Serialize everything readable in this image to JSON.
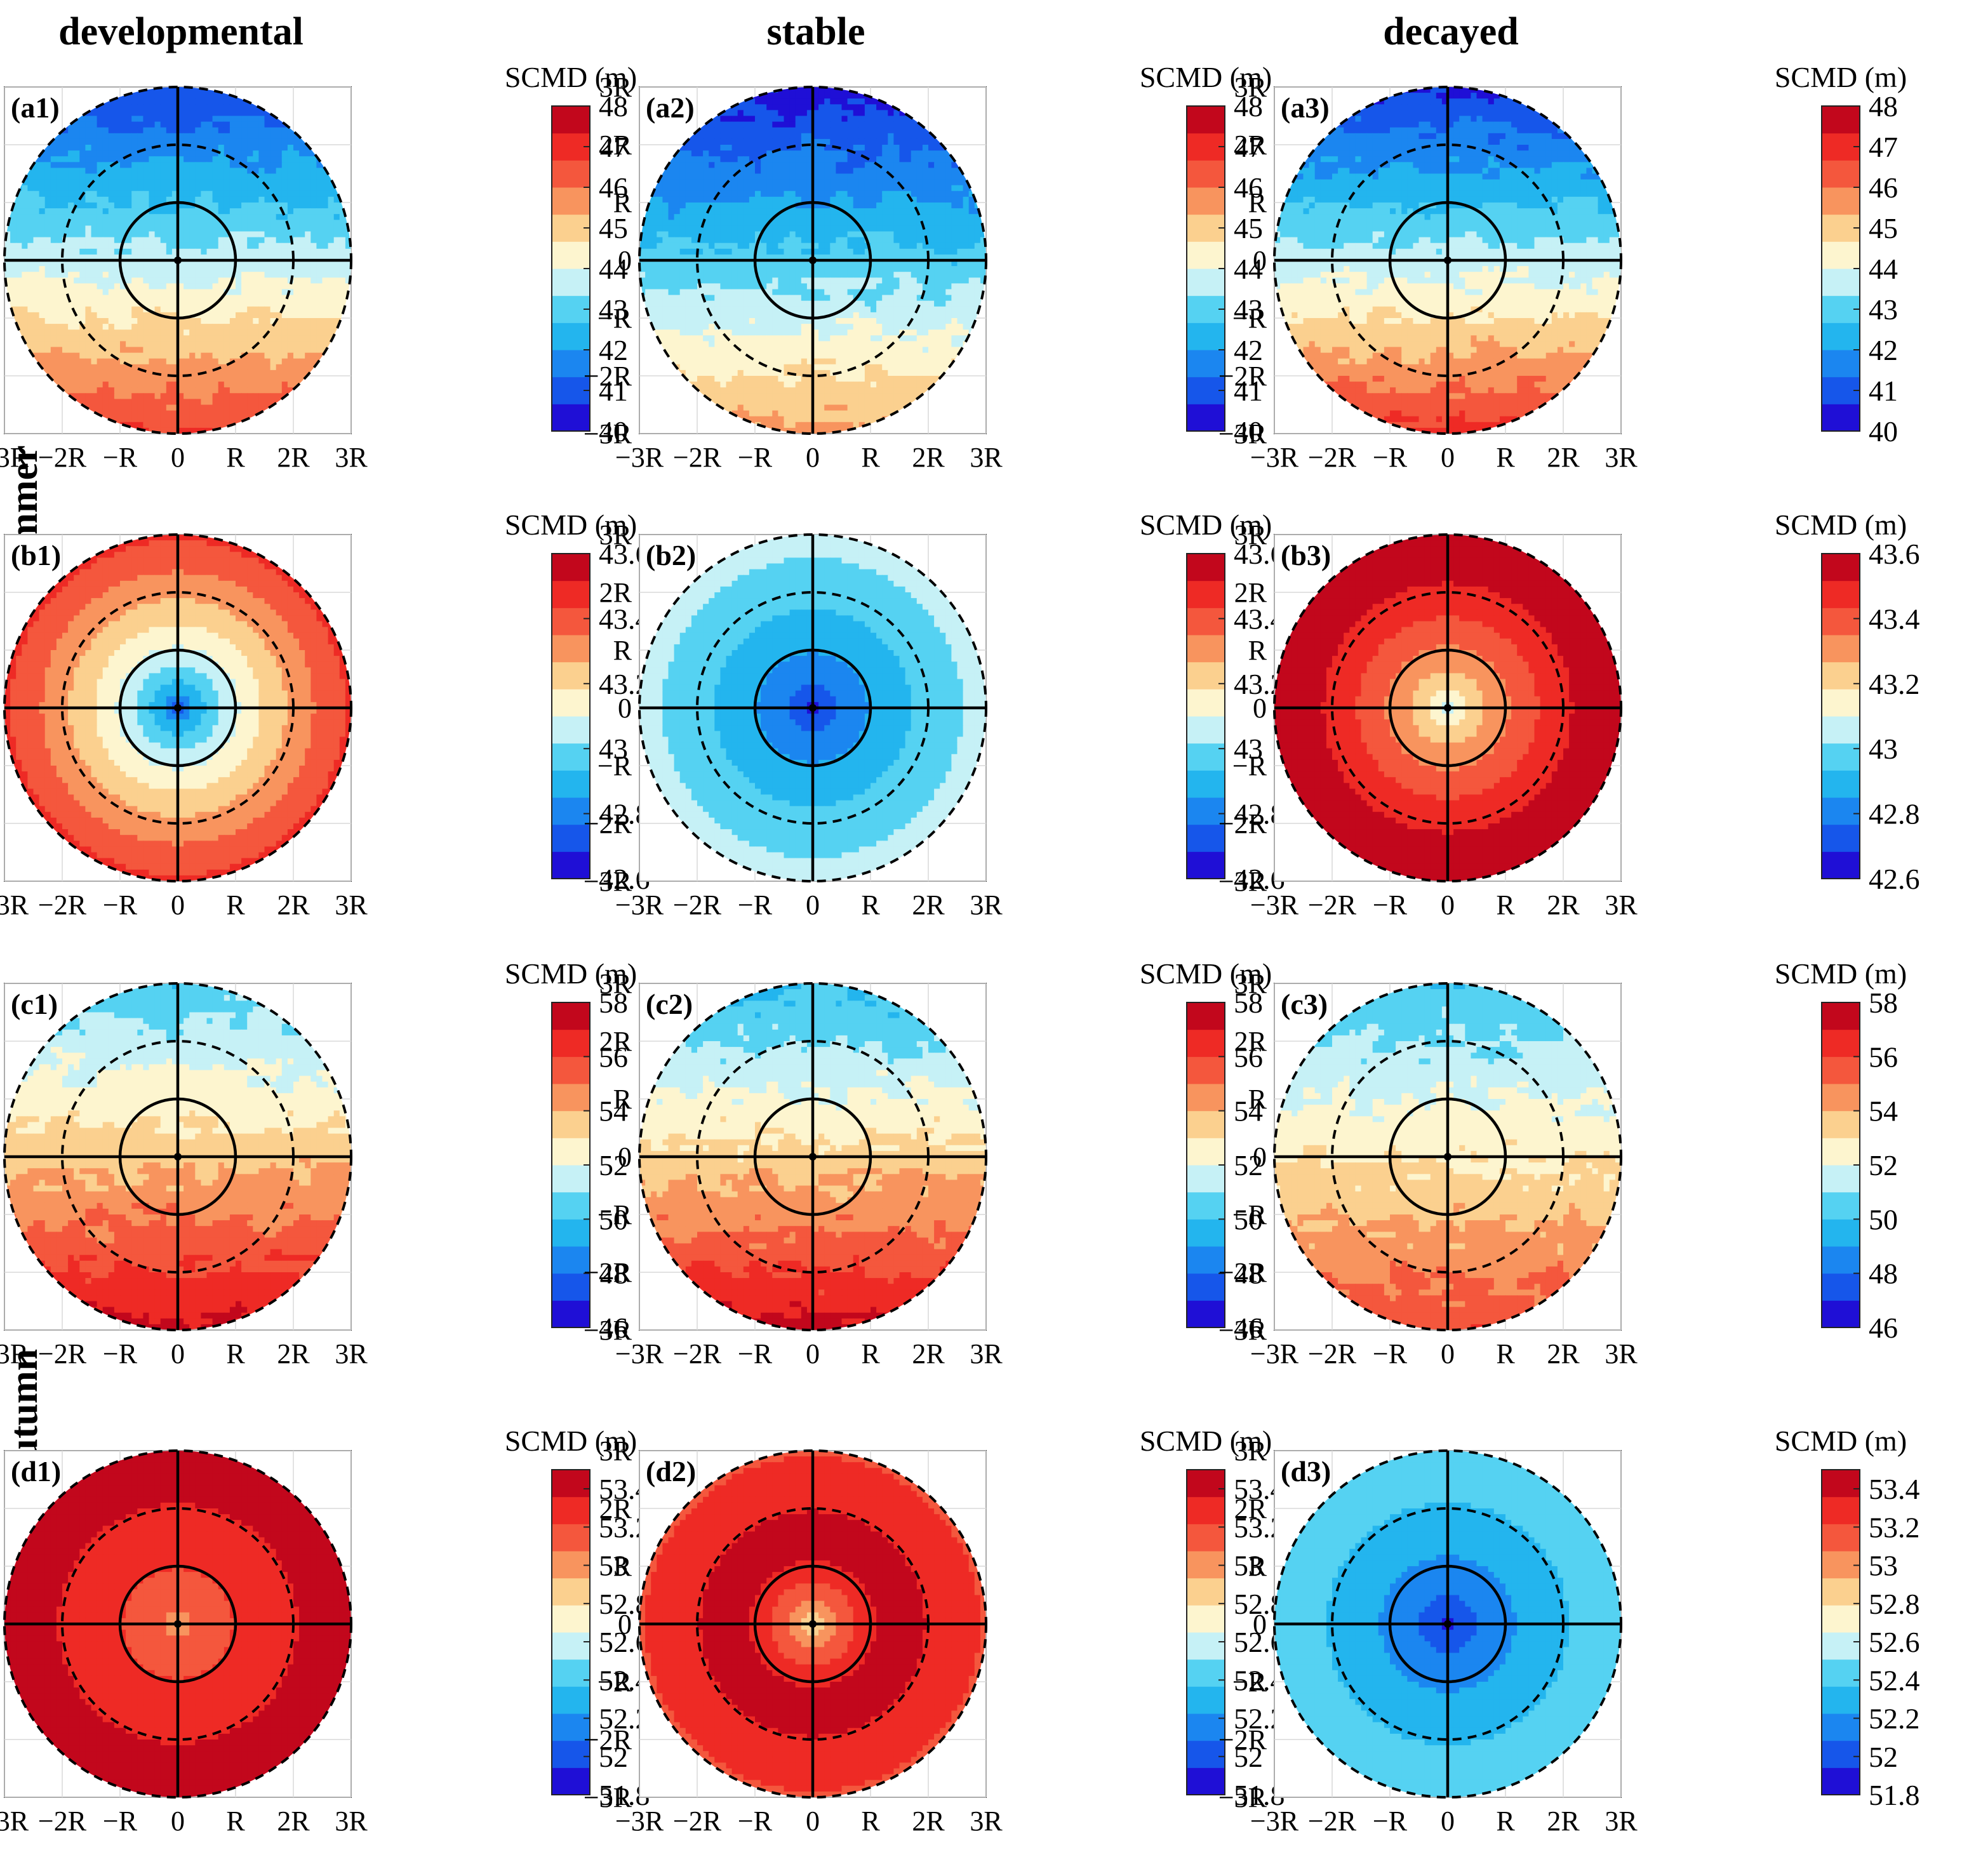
{
  "column_titles": [
    "developmental",
    "stable",
    "decayed"
  ],
  "row_titles": [
    "Summer",
    "Autumn"
  ],
  "colorbar_label": "SCMD (m)",
  "tick_labels": [
    "−3R",
    "−2R",
    "−R",
    "0",
    "R",
    "2R",
    "3R"
  ],
  "palette": [
    "#1f0fd6",
    "#1656ea",
    "#1b86f0",
    "#23b5ee",
    "#55d2f2",
    "#c6f1f6",
    "#fdf5cf",
    "#fbd08f",
    "#f8945e",
    "#f4573d",
    "#ee2a25",
    "#c2071c"
  ],
  "chart_data": [
    {
      "id": "a1",
      "label": "(a1)",
      "type": "heatmap",
      "pattern": "gradient",
      "stage": "developmental",
      "season": "Summer",
      "vmin": 40,
      "vmax": 48,
      "cb_ticks": [
        "48",
        "47",
        "46",
        "45",
        "44",
        "43",
        "42",
        "41",
        "40"
      ],
      "top_value": 40.8,
      "bottom_value": 46.7,
      "jitter": 0.3
    },
    {
      "id": "a2",
      "label": "(a2)",
      "type": "heatmap",
      "pattern": "gradient",
      "stage": "stable",
      "season": "Summer",
      "vmin": 40,
      "vmax": 48,
      "cb_ticks": [
        "48",
        "47",
        "46",
        "45",
        "44",
        "43",
        "42",
        "41",
        "40"
      ],
      "top_value": 40.4,
      "bottom_value": 45.6,
      "jitter": 0.3
    },
    {
      "id": "a3",
      "label": "(a3)",
      "type": "heatmap",
      "pattern": "gradient",
      "stage": "decayed",
      "season": "Summer",
      "vmin": 40,
      "vmax": 48,
      "cb_ticks": [
        "48",
        "47",
        "46",
        "45",
        "44",
        "43",
        "42",
        "41",
        "40"
      ],
      "top_value": 40.6,
      "bottom_value": 46.9,
      "jitter": 0.3
    },
    {
      "id": "b1",
      "label": "(b1)",
      "type": "heatmap",
      "pattern": "radial",
      "stage": "developmental",
      "season": "Summer",
      "vmin": 42.6,
      "vmax": 43.6,
      "cb_ticks": [
        "43.6",
        "43.4",
        "43.2",
        "43",
        "42.8",
        "42.6"
      ],
      "center_value": 42.65,
      "edge_value": 43.45
    },
    {
      "id": "b2",
      "label": "(b2)",
      "type": "heatmap",
      "pattern": "radial",
      "stage": "stable",
      "season": "Summer",
      "vmin": 42.6,
      "vmax": 43.6,
      "cb_ticks": [
        "43.6",
        "43.4",
        "43.2",
        "43",
        "42.8",
        "42.6"
      ],
      "center_value": 42.62,
      "edge_value": 43.05
    },
    {
      "id": "b3",
      "label": "(b3)",
      "type": "heatmap",
      "pattern": "radial",
      "stage": "decayed",
      "season": "Summer",
      "vmin": 42.6,
      "vmax": 43.6,
      "cb_ticks": [
        "43.6",
        "43.4",
        "43.2",
        "43",
        "42.8",
        "42.6"
      ],
      "center_value": 43.0,
      "edge_value": 43.62
    },
    {
      "id": "c1",
      "label": "(c1)",
      "type": "heatmap",
      "pattern": "gradient",
      "stage": "developmental",
      "season": "Autumn",
      "vmin": 46,
      "vmax": 58,
      "cb_ticks": [
        "58",
        "56",
        "54",
        "52",
        "50",
        "48",
        "46"
      ],
      "top_value": 50.3,
      "bottom_value": 57.3,
      "jitter": 0.5
    },
    {
      "id": "c2",
      "label": "(c2)",
      "type": "heatmap",
      "pattern": "gradient",
      "stage": "stable",
      "season": "Autumn",
      "vmin": 46,
      "vmax": 58,
      "cb_ticks": [
        "58",
        "56",
        "54",
        "52",
        "50",
        "48",
        "46"
      ],
      "top_value": 49.8,
      "bottom_value": 57.3,
      "jitter": 0.5
    },
    {
      "id": "c3",
      "label": "(c3)",
      "type": "heatmap",
      "pattern": "gradient",
      "stage": "decayed",
      "season": "Autumn",
      "vmin": 46,
      "vmax": 58,
      "cb_ticks": [
        "58",
        "56",
        "54",
        "52",
        "50",
        "48",
        "46"
      ],
      "top_value": 50.2,
      "bottom_value": 55.8,
      "jitter": 0.5
    },
    {
      "id": "d1",
      "label": "(d1)",
      "type": "heatmap",
      "pattern": "radial",
      "stage": "developmental",
      "season": "Autumn",
      "vmin": 51.8,
      "vmax": 53.5,
      "cb_ticks": [
        "53.4",
        "53.2",
        "53",
        "52.8",
        "52.6",
        "52.4",
        "52.2",
        "52",
        "51.8"
      ],
      "center_value": 52.95,
      "edge_value": 53.45
    },
    {
      "id": "d2",
      "label": "(d2)",
      "type": "heatmap",
      "pattern": "radial_peak",
      "stage": "stable",
      "season": "Autumn",
      "vmin": 51.8,
      "vmax": 53.5,
      "cb_ticks": [
        "53.4",
        "53.2",
        "53",
        "52.8",
        "52.6",
        "52.4",
        "52.2",
        "52",
        "51.8"
      ],
      "center_value": 52.7,
      "peak_value": 53.45,
      "edge_value": 53.2
    },
    {
      "id": "d3",
      "label": "(d3)",
      "type": "heatmap",
      "pattern": "radial",
      "stage": "decayed",
      "season": "Autumn",
      "vmin": 51.8,
      "vmax": 53.5,
      "cb_ticks": [
        "53.4",
        "53.2",
        "53",
        "52.8",
        "52.6",
        "52.4",
        "52.2",
        "52",
        "51.8"
      ],
      "center_value": 51.85,
      "edge_value": 52.48
    }
  ]
}
